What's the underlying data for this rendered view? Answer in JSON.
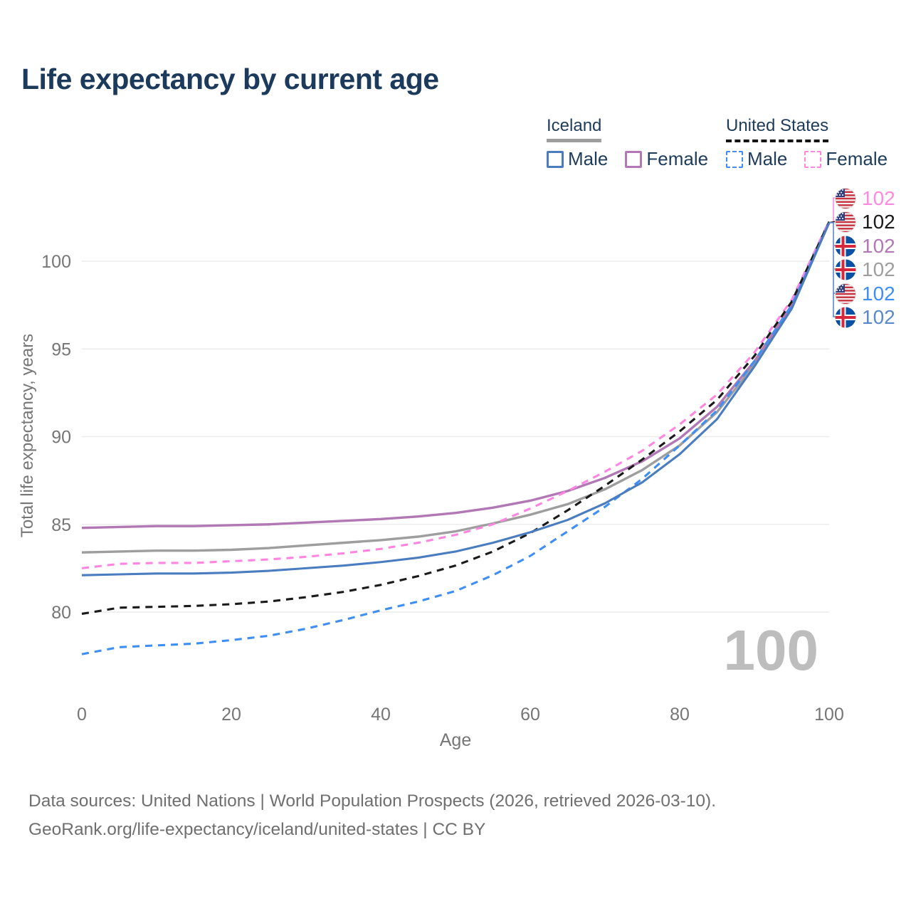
{
  "header": {
    "title": "Life expectancy by current age"
  },
  "legend": {
    "iceland": {
      "label": "Iceland",
      "male": "Male",
      "female": "Female",
      "underline_color": "#9e9e9e"
    },
    "us": {
      "label": "United States",
      "male": "Male",
      "female": "Female",
      "underline_color": "#141414"
    }
  },
  "chart_data": {
    "type": "line",
    "title": "Life expectancy by current age",
    "xlabel": "Age",
    "ylabel": "Total life expectancy, years",
    "xlim": [
      0,
      100
    ],
    "ylim": [
      77,
      103
    ],
    "xticks": [
      0,
      20,
      40,
      60,
      80,
      100
    ],
    "yticks": [
      80,
      85,
      90,
      95,
      100
    ],
    "grid": "horizontal",
    "legend_position": "top-right",
    "x": [
      0,
      5,
      10,
      15,
      20,
      25,
      30,
      35,
      40,
      45,
      50,
      55,
      60,
      65,
      70,
      75,
      80,
      85,
      90,
      95,
      100
    ],
    "series": [
      {
        "key": "iceland-male",
        "name": "Iceland Male",
        "color": "#4a7cc0",
        "dash": "solid",
        "values": [
          82.1,
          82.15,
          82.2,
          82.2,
          82.25,
          82.35,
          82.5,
          82.65,
          82.85,
          83.1,
          83.45,
          83.95,
          84.55,
          85.25,
          86.2,
          87.4,
          89.0,
          91.0,
          94.0,
          97.3,
          102.2
        ]
      },
      {
        "key": "iceland-female",
        "name": "Iceland Female",
        "color": "#b277b5",
        "dash": "solid",
        "values": [
          84.8,
          84.85,
          84.9,
          84.9,
          84.95,
          85.0,
          85.1,
          85.2,
          85.3,
          85.45,
          85.65,
          85.95,
          86.35,
          86.9,
          87.65,
          88.6,
          89.9,
          91.7,
          94.3,
          97.5,
          102.2
        ]
      },
      {
        "key": "iceland-both",
        "name": "Iceland Both sexes",
        "color": "#9e9e9e",
        "dash": "solid",
        "values": [
          83.4,
          83.45,
          83.5,
          83.5,
          83.55,
          83.65,
          83.8,
          83.95,
          84.1,
          84.3,
          84.6,
          85.05,
          85.55,
          86.15,
          87.0,
          88.1,
          89.5,
          91.4,
          94.1,
          97.4,
          102.2
        ]
      },
      {
        "key": "us-male",
        "name": "United States Male",
        "color": "#3f8ef3",
        "dash": "dashed",
        "values": [
          77.6,
          78.0,
          78.1,
          78.2,
          78.4,
          78.65,
          79.05,
          79.55,
          80.1,
          80.6,
          81.2,
          82.1,
          83.2,
          84.6,
          86.0,
          87.6,
          89.5,
          91.5,
          94.3,
          97.5,
          102.2
        ]
      },
      {
        "key": "us-female",
        "name": "United States Female",
        "color": "#ff85e0",
        "dash": "dashed",
        "values": [
          82.5,
          82.75,
          82.8,
          82.8,
          82.9,
          83.0,
          83.15,
          83.35,
          83.6,
          83.95,
          84.4,
          85.0,
          85.9,
          86.9,
          88.0,
          89.2,
          90.7,
          92.4,
          94.8,
          97.8,
          102.3
        ]
      },
      {
        "key": "us-both",
        "name": "United States Both sexes",
        "color": "#1a1a1a",
        "dash": "dashed",
        "values": [
          79.9,
          80.25,
          80.3,
          80.35,
          80.45,
          80.6,
          80.85,
          81.15,
          81.55,
          82.05,
          82.65,
          83.45,
          84.5,
          85.8,
          87.2,
          88.7,
          90.3,
          92.1,
          94.6,
          97.7,
          102.25
        ]
      }
    ],
    "end_labels": [
      {
        "flag": "us",
        "value": "102",
        "color": "#ff8ae0"
      },
      {
        "flag": "us",
        "value": "102",
        "color": "#1a1a1a"
      },
      {
        "flag": "iceland",
        "value": "102",
        "color": "#b277b5"
      },
      {
        "flag": "iceland",
        "value": "102",
        "color": "#9e9e9e"
      },
      {
        "flag": "us",
        "value": "102",
        "color": "#3f8ef3"
      },
      {
        "flag": "iceland",
        "value": "102",
        "color": "#5b88c9"
      }
    ],
    "age_watermark": "100"
  },
  "footer": {
    "line1": "Data sources: United Nations | World Population Prospects (2026, retrieved 2026-03-10).",
    "line2": "GeoRank.org/life-expectancy/iceland/united-states | CC BY"
  }
}
